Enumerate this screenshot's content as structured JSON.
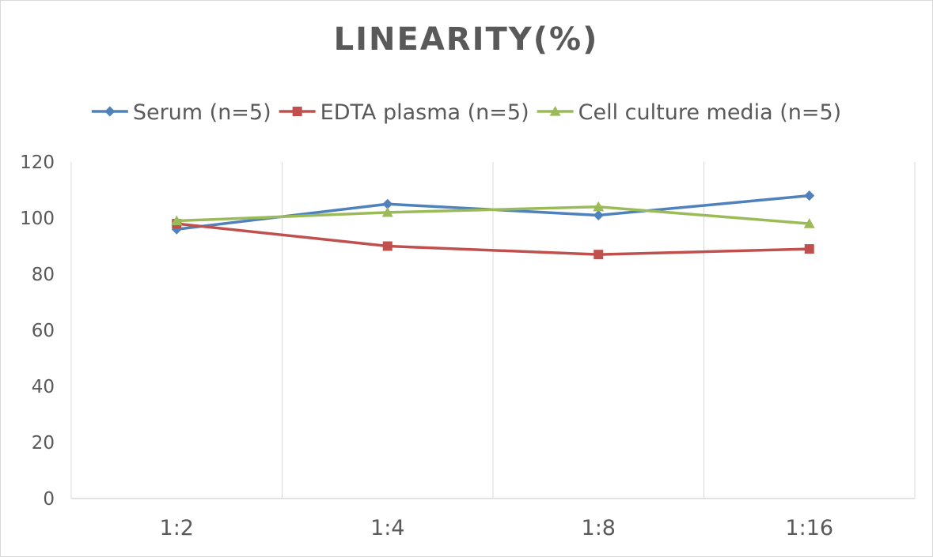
{
  "chart_data": {
    "type": "line",
    "title": "LINEARITY(%)",
    "categories": [
      "1:2",
      "1:4",
      "1:8",
      "1:16"
    ],
    "ylim": [
      0,
      120
    ],
    "yticks": [
      "0",
      "20",
      "40",
      "60",
      "80",
      "100",
      "120"
    ],
    "grid": "vertical",
    "legend": "top",
    "series": [
      {
        "name": "Serum (n=5)",
        "values": [
          96,
          105,
          101,
          108
        ],
        "color": "#4f81bd",
        "marker": "diamond"
      },
      {
        "name": "EDTA plasma (n=5)",
        "values": [
          98,
          90,
          87,
          89
        ],
        "color": "#c0504d",
        "marker": "square"
      },
      {
        "name": "Cell culture media (n=5)",
        "values": [
          99,
          102,
          104,
          98
        ],
        "color": "#9bbb59",
        "marker": "triangle"
      }
    ]
  }
}
